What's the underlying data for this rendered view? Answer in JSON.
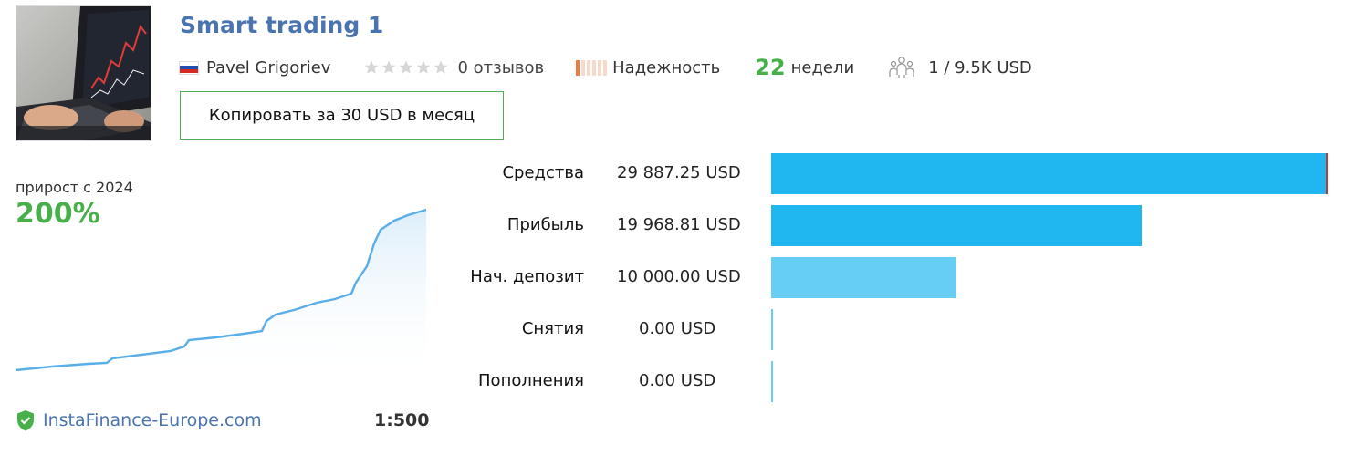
{
  "signal": {
    "title": "Smart trading 1",
    "author": "Pavel Grigoriev",
    "reviews": "0 отзывов",
    "rating": 0,
    "reliability_label": "Надежность",
    "weeks_value": "22",
    "weeks_label": "недели",
    "subscribers": "1 / 9.5K USD",
    "copy_button": "Копировать за 30 USD в месяц"
  },
  "colors": {
    "title": "#4a74b0",
    "green": "#48b04b",
    "bar_primary": "#20b6ef",
    "bar_light": "#66cef4",
    "reliability_active": "#f07c3c",
    "reliability_inactive": "#f9d9c9"
  },
  "icons": {
    "flag": "russia-flag-icon",
    "stars": "star-icon",
    "subscribers": "people-icon",
    "verified": "shield-check-icon"
  },
  "growth": {
    "label": "прирост с 2024",
    "value": "200%"
  },
  "broker": {
    "name": "InstaFinance-Europe.com",
    "leverage": "1:500"
  },
  "stats": [
    {
      "label": "Средства",
      "value": "29 887.25 USD",
      "amount": 29887.25
    },
    {
      "label": "Прибыль",
      "value": "19 968.81 USD",
      "amount": 19968.81
    },
    {
      "label": "Нач. депозит",
      "value": "10 000.00 USD",
      "amount": 10000.0
    },
    {
      "label": "Снятия",
      "value": "0.00 USD",
      "amount": 0
    },
    {
      "label": "Пополнения",
      "value": "0.00 USD",
      "amount": 0
    }
  ]
}
